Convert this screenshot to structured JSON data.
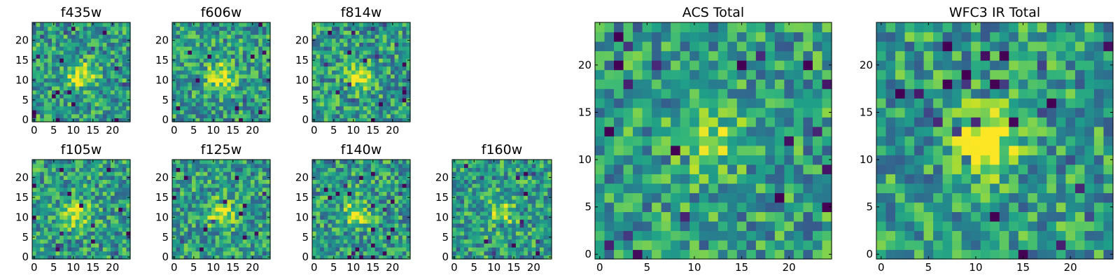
{
  "chart_data": [
    {
      "type": "heatmap",
      "title": "f435w",
      "x_ticks": [
        "0",
        "5",
        "10",
        "15",
        "20"
      ],
      "y_ticks": [
        "0",
        "5",
        "10",
        "15",
        "20"
      ],
      "grid_size": 25,
      "colormap": "viridis",
      "value_range": [
        0,
        1
      ],
      "bright_center": [
        12,
        11
      ],
      "contrast": 0.45,
      "seed": 101
    },
    {
      "type": "heatmap",
      "title": "f606w",
      "x_ticks": [
        "0",
        "5",
        "10",
        "15",
        "20"
      ],
      "y_ticks": [
        "0",
        "5",
        "10",
        "15",
        "20"
      ],
      "grid_size": 25,
      "colormap": "viridis",
      "value_range": [
        0,
        1
      ],
      "bright_center": [
        12,
        11
      ],
      "contrast": 0.45,
      "seed": 202
    },
    {
      "type": "heatmap",
      "title": "f814w",
      "x_ticks": [
        "0",
        "5",
        "10",
        "15",
        "20"
      ],
      "y_ticks": [
        "0",
        "5",
        "10",
        "15",
        "20"
      ],
      "grid_size": 25,
      "colormap": "viridis",
      "value_range": [
        0,
        1
      ],
      "bright_center": [
        12,
        11
      ],
      "contrast": 0.45,
      "seed": 303
    },
    {
      "type": "heatmap",
      "title": "f105w",
      "x_ticks": [
        "0",
        "5",
        "10",
        "15",
        "20"
      ],
      "y_ticks": [
        "0",
        "5",
        "10",
        "15",
        "20"
      ],
      "grid_size": 25,
      "colormap": "viridis",
      "value_range": [
        0,
        1
      ],
      "bright_center": [
        11,
        11
      ],
      "contrast": 0.4,
      "seed": 404
    },
    {
      "type": "heatmap",
      "title": "f125w",
      "x_ticks": [
        "0",
        "5",
        "10",
        "15",
        "20"
      ],
      "y_ticks": [
        "0",
        "5",
        "10",
        "15",
        "20"
      ],
      "grid_size": 25,
      "colormap": "viridis",
      "value_range": [
        0,
        1
      ],
      "bright_center": [
        12,
        11
      ],
      "contrast": 0.4,
      "seed": 505
    },
    {
      "type": "heatmap",
      "title": "f140w",
      "x_ticks": [
        "0",
        "5",
        "10",
        "15",
        "20"
      ],
      "y_ticks": [
        "0",
        "5",
        "10",
        "15",
        "20"
      ],
      "grid_size": 25,
      "colormap": "viridis",
      "value_range": [
        0,
        1
      ],
      "bright_center": [
        11,
        11
      ],
      "contrast": 0.4,
      "seed": 606
    },
    {
      "type": "heatmap",
      "title": "f160w",
      "x_ticks": [
        "0",
        "5",
        "10",
        "15",
        "20"
      ],
      "y_ticks": [
        "0",
        "5",
        "10",
        "15",
        "20"
      ],
      "grid_size": 25,
      "colormap": "viridis",
      "value_range": [
        0,
        1
      ],
      "bright_center": [
        12,
        11
      ],
      "contrast": 0.35,
      "seed": 707
    },
    {
      "type": "heatmap",
      "title": "ACS Total",
      "x_ticks": [
        "0",
        "5",
        "10",
        "15",
        "20"
      ],
      "y_ticks": [
        "0",
        "5",
        "10",
        "15",
        "20"
      ],
      "grid_size": 25,
      "colormap": "viridis",
      "value_range": [
        0,
        1
      ],
      "bright_center": [
        12,
        12
      ],
      "contrast": 0.3,
      "seed": 808
    },
    {
      "type": "heatmap",
      "title": "WFC3 IR Total",
      "x_ticks": [
        "0",
        "5",
        "10",
        "15",
        "20"
      ],
      "y_ticks": [
        "0",
        "5",
        "10",
        "15",
        "20"
      ],
      "grid_size": 25,
      "colormap": "viridis",
      "value_range": [
        0,
        1
      ],
      "bright_center": [
        11,
        12
      ],
      "contrast": 0.55,
      "seed": 909
    }
  ]
}
